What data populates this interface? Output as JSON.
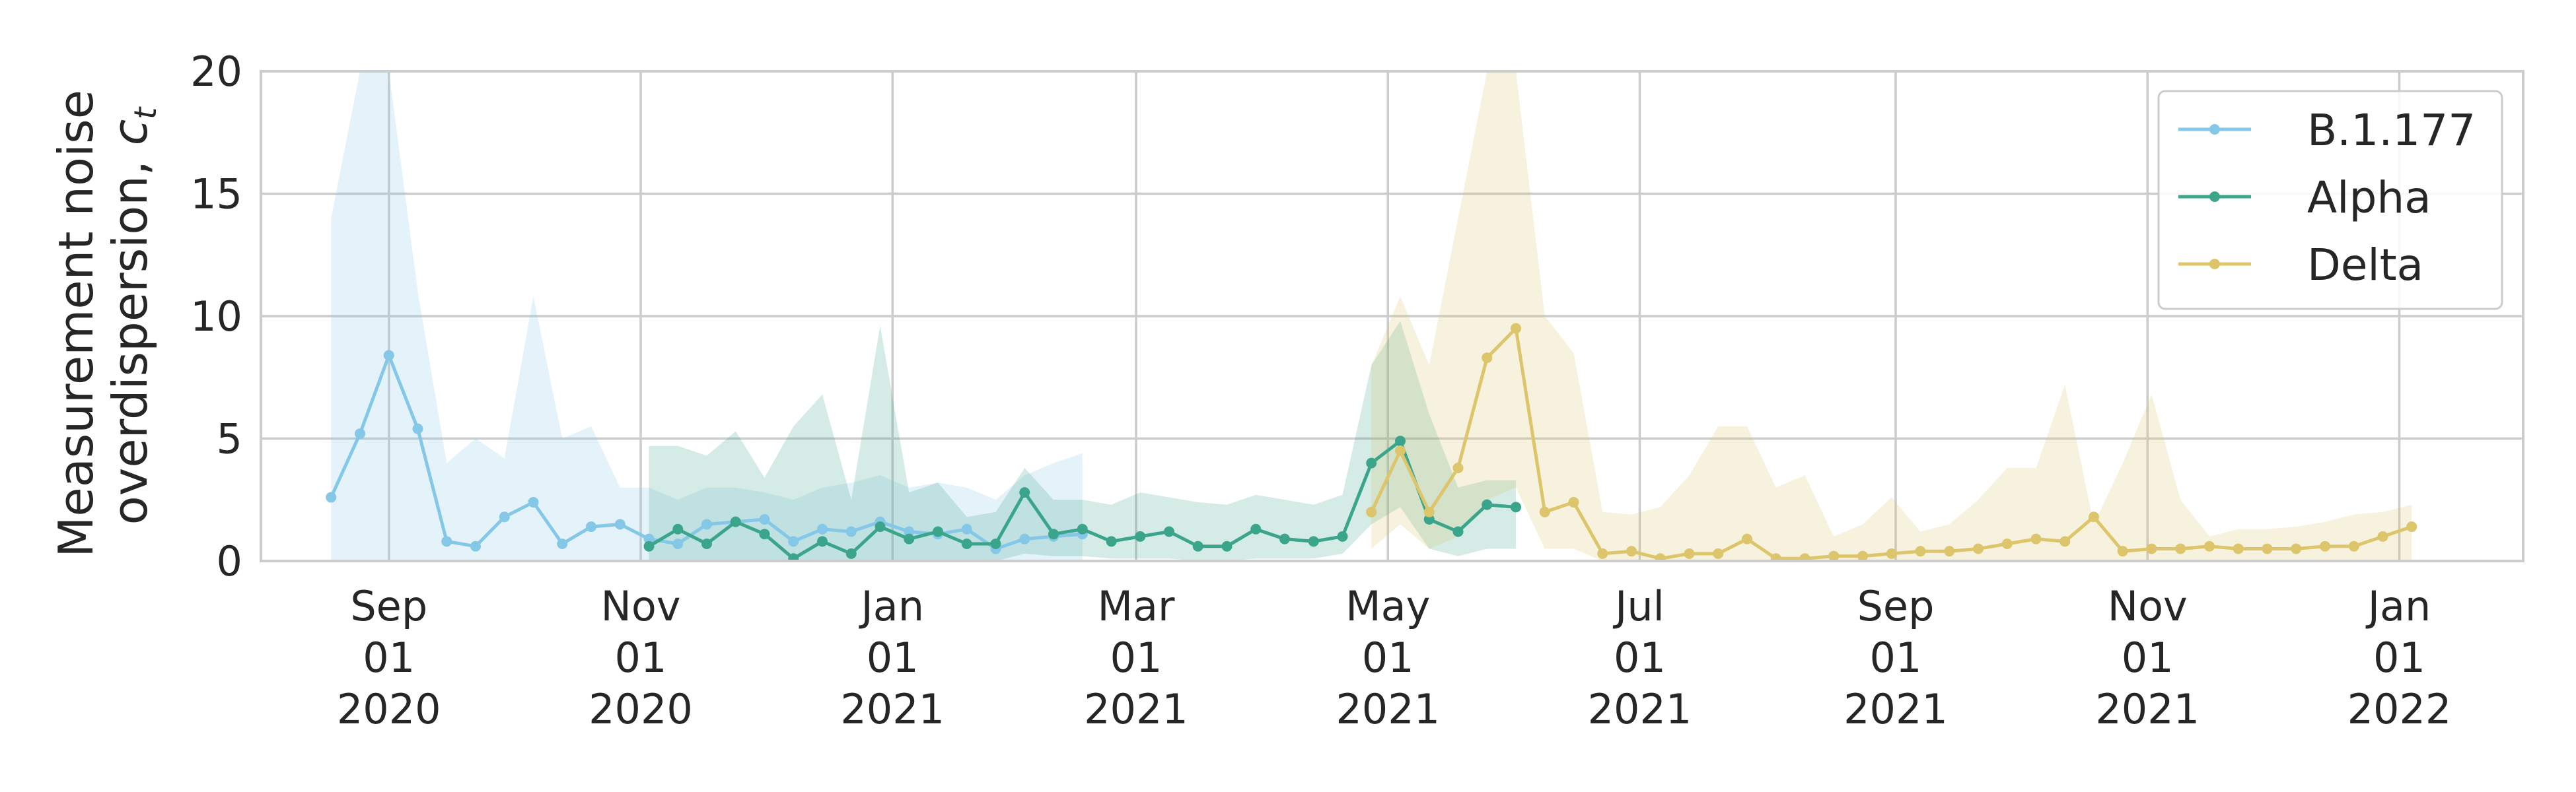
{
  "chart_data": {
    "type": "line",
    "title": "",
    "xlabel": "",
    "ylabel": "Measurement noise\noverdispersion, c_t",
    "ylabel_lines": [
      "Measurement noise",
      "overdispersion, "
    ],
    "ylabel_symbol": "c",
    "ylabel_subscript": "t",
    "ylim": [
      0,
      20
    ],
    "yticks": [
      0,
      5,
      10,
      15,
      20
    ],
    "xlim": [
      "2020-08-01",
      "2022-01-31"
    ],
    "xticks": [
      {
        "date": "2020-09-01",
        "label": [
          "Sep",
          "01",
          "2020"
        ]
      },
      {
        "date": "2020-11-01",
        "label": [
          "Nov",
          "01",
          "2020"
        ]
      },
      {
        "date": "2021-01-01",
        "label": [
          "Jan",
          "01",
          "2021"
        ]
      },
      {
        "date": "2021-03-01",
        "label": [
          "Mar",
          "01",
          "2021"
        ]
      },
      {
        "date": "2021-05-01",
        "label": [
          "May",
          "01",
          "2021"
        ]
      },
      {
        "date": "2021-07-01",
        "label": [
          "Jul",
          "01",
          "2021"
        ]
      },
      {
        "date": "2021-09-01",
        "label": [
          "Sep",
          "01",
          "2021"
        ]
      },
      {
        "date": "2021-11-01",
        "label": [
          "Nov",
          "01",
          "2021"
        ]
      },
      {
        "date": "2022-01-01",
        "label": [
          "Jan",
          "01",
          "2022"
        ]
      }
    ],
    "grid": true,
    "legend_position": "top-right",
    "series": [
      {
        "name": "B.1.177",
        "color": "#85c7e6",
        "x": [
          "2020-08-18",
          "2020-08-25",
          "2020-09-01",
          "2020-09-08",
          "2020-09-15",
          "2020-09-22",
          "2020-09-29",
          "2020-10-06",
          "2020-10-13",
          "2020-10-20",
          "2020-10-27",
          "2020-11-03",
          "2020-11-10",
          "2020-11-17",
          "2020-11-24",
          "2020-12-01",
          "2020-12-08",
          "2020-12-15",
          "2020-12-22",
          "2020-12-29",
          "2021-01-05",
          "2021-01-12",
          "2021-01-19",
          "2021-01-26",
          "2021-02-02",
          "2021-02-09",
          "2021-02-16"
        ],
        "y": [
          2.6,
          5.2,
          8.4,
          5.4,
          0.8,
          0.6,
          1.8,
          2.4,
          0.7,
          1.4,
          1.5,
          0.9,
          0.7,
          1.5,
          1.6,
          1.7,
          0.8,
          1.3,
          1.2,
          1.6,
          1.2,
          1.1,
          1.3,
          0.5,
          0.9,
          1.0,
          1.1
        ],
        "lower": [
          0.0,
          0.0,
          0.0,
          0.0,
          0.0,
          0.0,
          0.0,
          0.0,
          0.0,
          0.0,
          0.0,
          0.0,
          0.0,
          0.0,
          0.0,
          0.0,
          0.0,
          0.0,
          0.0,
          0.0,
          0.0,
          0.0,
          0.0,
          0.0,
          0.0,
          0.0,
          0.0
        ],
        "upper": [
          14.0,
          24.0,
          22.0,
          11.0,
          4.0,
          5.0,
          4.2,
          10.8,
          5.0,
          5.5,
          3.0,
          3.0,
          2.5,
          3.0,
          3.0,
          2.8,
          2.5,
          3.0,
          3.2,
          3.5,
          3.0,
          3.2,
          3.0,
          2.5,
          3.5,
          4.0,
          4.4
        ]
      },
      {
        "name": "Alpha",
        "color": "#3ba58c",
        "x": [
          "2020-11-03",
          "2020-11-10",
          "2020-11-17",
          "2020-11-24",
          "2020-12-01",
          "2020-12-08",
          "2020-12-15",
          "2020-12-22",
          "2020-12-29",
          "2021-01-05",
          "2021-01-12",
          "2021-01-19",
          "2021-01-26",
          "2021-02-02",
          "2021-02-09",
          "2021-02-16",
          "2021-02-23",
          "2021-03-02",
          "2021-03-09",
          "2021-03-16",
          "2021-03-23",
          "2021-03-30",
          "2021-04-06",
          "2021-04-13",
          "2021-04-20",
          "2021-04-27",
          "2021-05-04",
          "2021-05-11",
          "2021-05-18",
          "2021-05-25",
          "2021-06-01"
        ],
        "y": [
          0.6,
          1.3,
          0.7,
          1.6,
          1.1,
          0.1,
          0.8,
          0.3,
          1.4,
          0.9,
          1.2,
          0.7,
          0.7,
          2.8,
          1.1,
          1.3,
          0.8,
          1.0,
          1.2,
          0.6,
          0.6,
          1.3,
          0.9,
          0.8,
          1.0,
          4.0,
          4.9,
          1.7,
          1.2,
          2.3,
          2.2
        ],
        "lower": [
          0.0,
          0.0,
          0.0,
          0.0,
          0.0,
          0.0,
          0.0,
          0.0,
          0.0,
          0.0,
          0.0,
          0.0,
          0.0,
          0.3,
          0.2,
          0.2,
          0.1,
          0.1,
          0.1,
          0.0,
          0.0,
          0.1,
          0.1,
          0.1,
          0.3,
          1.5,
          2.2,
          0.5,
          0.2,
          0.5,
          0.5
        ],
        "upper": [
          4.7,
          4.7,
          4.3,
          5.3,
          3.4,
          5.5,
          6.8,
          2.5,
          9.6,
          2.8,
          3.2,
          1.8,
          2.0,
          3.8,
          2.5,
          2.5,
          2.3,
          2.8,
          2.6,
          2.4,
          2.3,
          2.7,
          2.5,
          2.3,
          2.7,
          8.0,
          9.8,
          6.0,
          3.0,
          3.3,
          3.3
        ]
      },
      {
        "name": "Delta",
        "color": "#dcc56b",
        "x": [
          "2021-04-27",
          "2021-05-04",
          "2021-05-11",
          "2021-05-18",
          "2021-05-25",
          "2021-06-01",
          "2021-06-08",
          "2021-06-15",
          "2021-06-22",
          "2021-06-29",
          "2021-07-06",
          "2021-07-13",
          "2021-07-20",
          "2021-07-27",
          "2021-08-03",
          "2021-08-10",
          "2021-08-17",
          "2021-08-24",
          "2021-08-31",
          "2021-09-07",
          "2021-09-14",
          "2021-09-21",
          "2021-09-28",
          "2021-10-05",
          "2021-10-12",
          "2021-10-19",
          "2021-10-26",
          "2021-11-02",
          "2021-11-09",
          "2021-11-16",
          "2021-11-23",
          "2021-11-30",
          "2021-12-07",
          "2021-12-14",
          "2021-12-21",
          "2021-12-28",
          "2022-01-04"
        ],
        "y": [
          2.0,
          4.5,
          2.0,
          3.8,
          8.3,
          9.5,
          2.0,
          2.4,
          0.3,
          0.4,
          0.1,
          0.3,
          0.3,
          0.9,
          0.1,
          0.1,
          0.2,
          0.2,
          0.3,
          0.4,
          0.4,
          0.5,
          0.7,
          0.9,
          0.8,
          1.8,
          0.4,
          0.5,
          0.5,
          0.6,
          0.5,
          0.5,
          0.5,
          0.6,
          0.6,
          1.0,
          1.4
        ],
        "lower": [
          0.5,
          1.5,
          0.5,
          1.0,
          2.5,
          3.0,
          0.5,
          0.5,
          0.0,
          0.0,
          0.0,
          0.0,
          0.0,
          0.0,
          0.0,
          0.0,
          0.0,
          0.0,
          0.0,
          0.0,
          0.0,
          0.0,
          0.0,
          0.0,
          0.0,
          0.0,
          0.0,
          0.0,
          0.0,
          0.0,
          0.0,
          0.0,
          0.0,
          0.0,
          0.0,
          0.0,
          0.0
        ],
        "upper": [
          8.0,
          10.8,
          8.0,
          14.0,
          22.0,
          24.0,
          10.0,
          8.5,
          2.0,
          1.9,
          2.2,
          3.5,
          5.5,
          5.5,
          3.0,
          3.5,
          1.0,
          1.5,
          2.6,
          1.2,
          1.5,
          2.5,
          3.8,
          3.8,
          7.2,
          1.5,
          4.0,
          6.8,
          2.5,
          1.0,
          1.3,
          1.3,
          1.4,
          1.6,
          1.9,
          2.0,
          2.3
        ]
      }
    ]
  }
}
